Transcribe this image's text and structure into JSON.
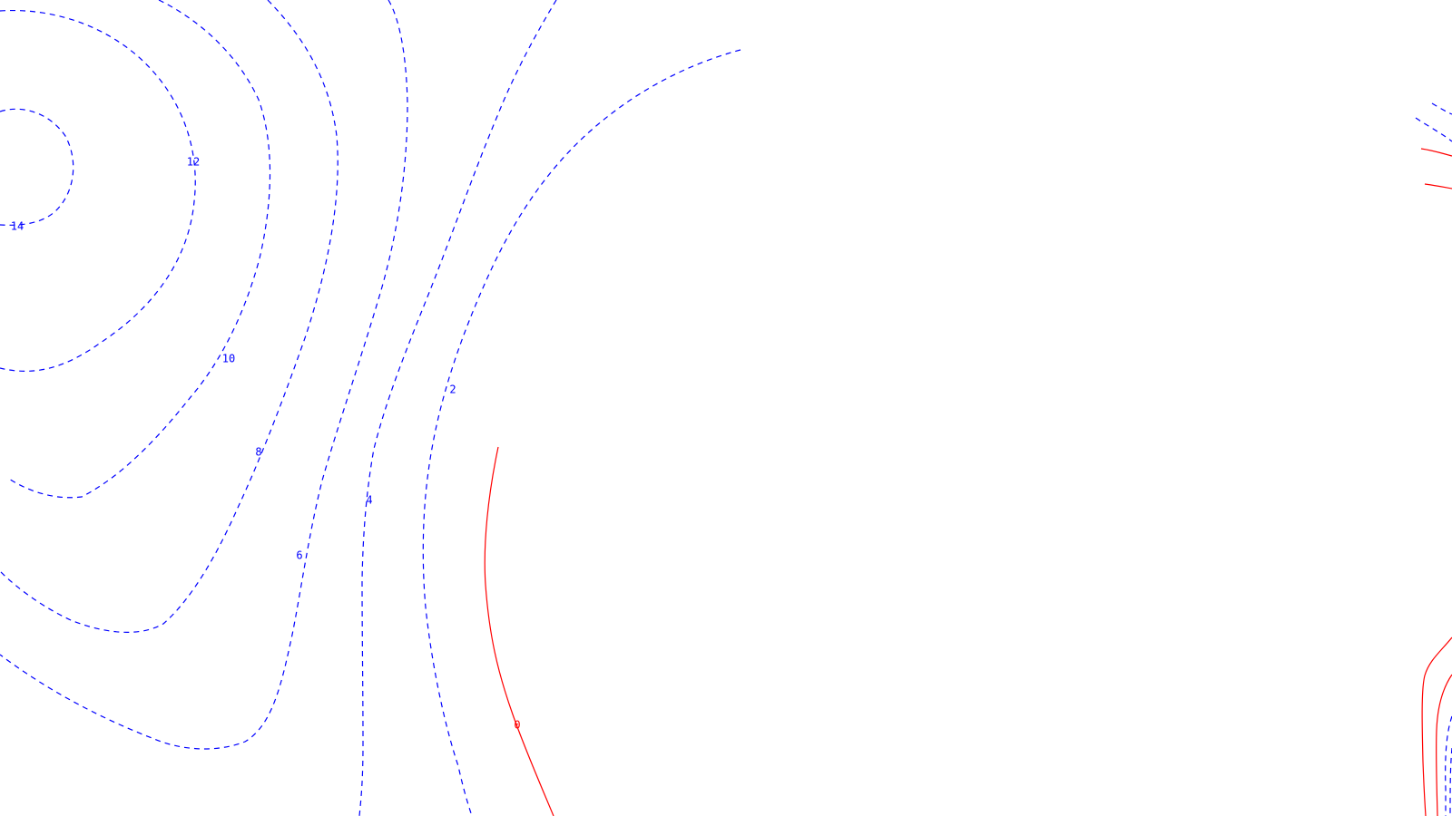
{
  "colors": {
    "background": "#ffffff",
    "negative": "#0000ff",
    "zero": "#ff0000",
    "positive": "#ff0000"
  },
  "contour_plot": {
    "line_styles": {
      "negative_levels": "dashed",
      "zero_and_positive_levels": "solid"
    },
    "labels": [
      "14",
      "12",
      "10",
      "8",
      "6",
      "4",
      "2",
      "0"
    ]
  }
}
